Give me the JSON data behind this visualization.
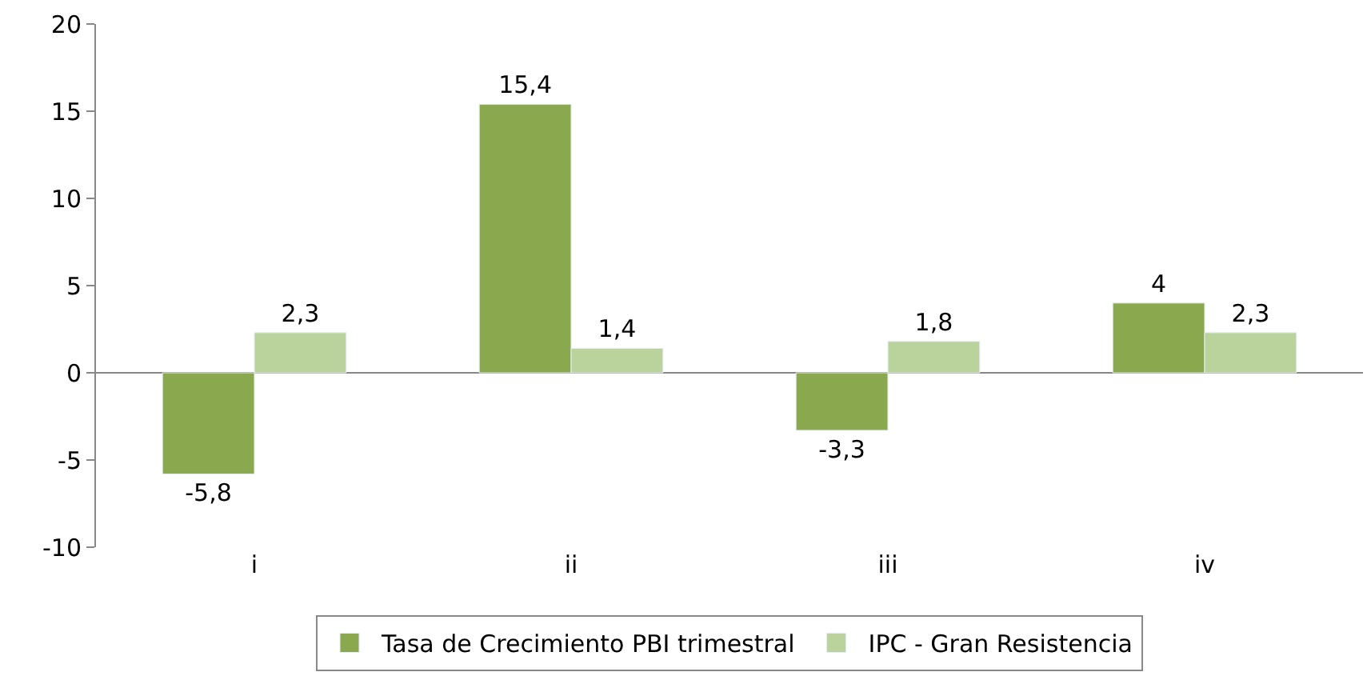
{
  "chart_data": {
    "type": "bar",
    "categories": [
      "i",
      "ii",
      "iii",
      "iv"
    ],
    "series": [
      {
        "name": "Tasa de Crecimiento PBI trimestral",
        "color": "#8aa84e",
        "values": [
          -5.8,
          15.4,
          -3.3,
          4
        ],
        "value_labels": [
          "-5,8",
          "15,4",
          "-3,3",
          "4"
        ]
      },
      {
        "name": "IPC - Gran Resistencia",
        "color": "#bad39c",
        "values": [
          2.3,
          1.4,
          1.8,
          2.3
        ],
        "value_labels": [
          "2,3",
          "1,4",
          "1,8",
          "2,3"
        ]
      }
    ],
    "ylim": [
      -10,
      20
    ],
    "yticks": [
      -10,
      -5,
      0,
      5,
      10,
      15,
      20
    ],
    "legend": "bottom"
  }
}
